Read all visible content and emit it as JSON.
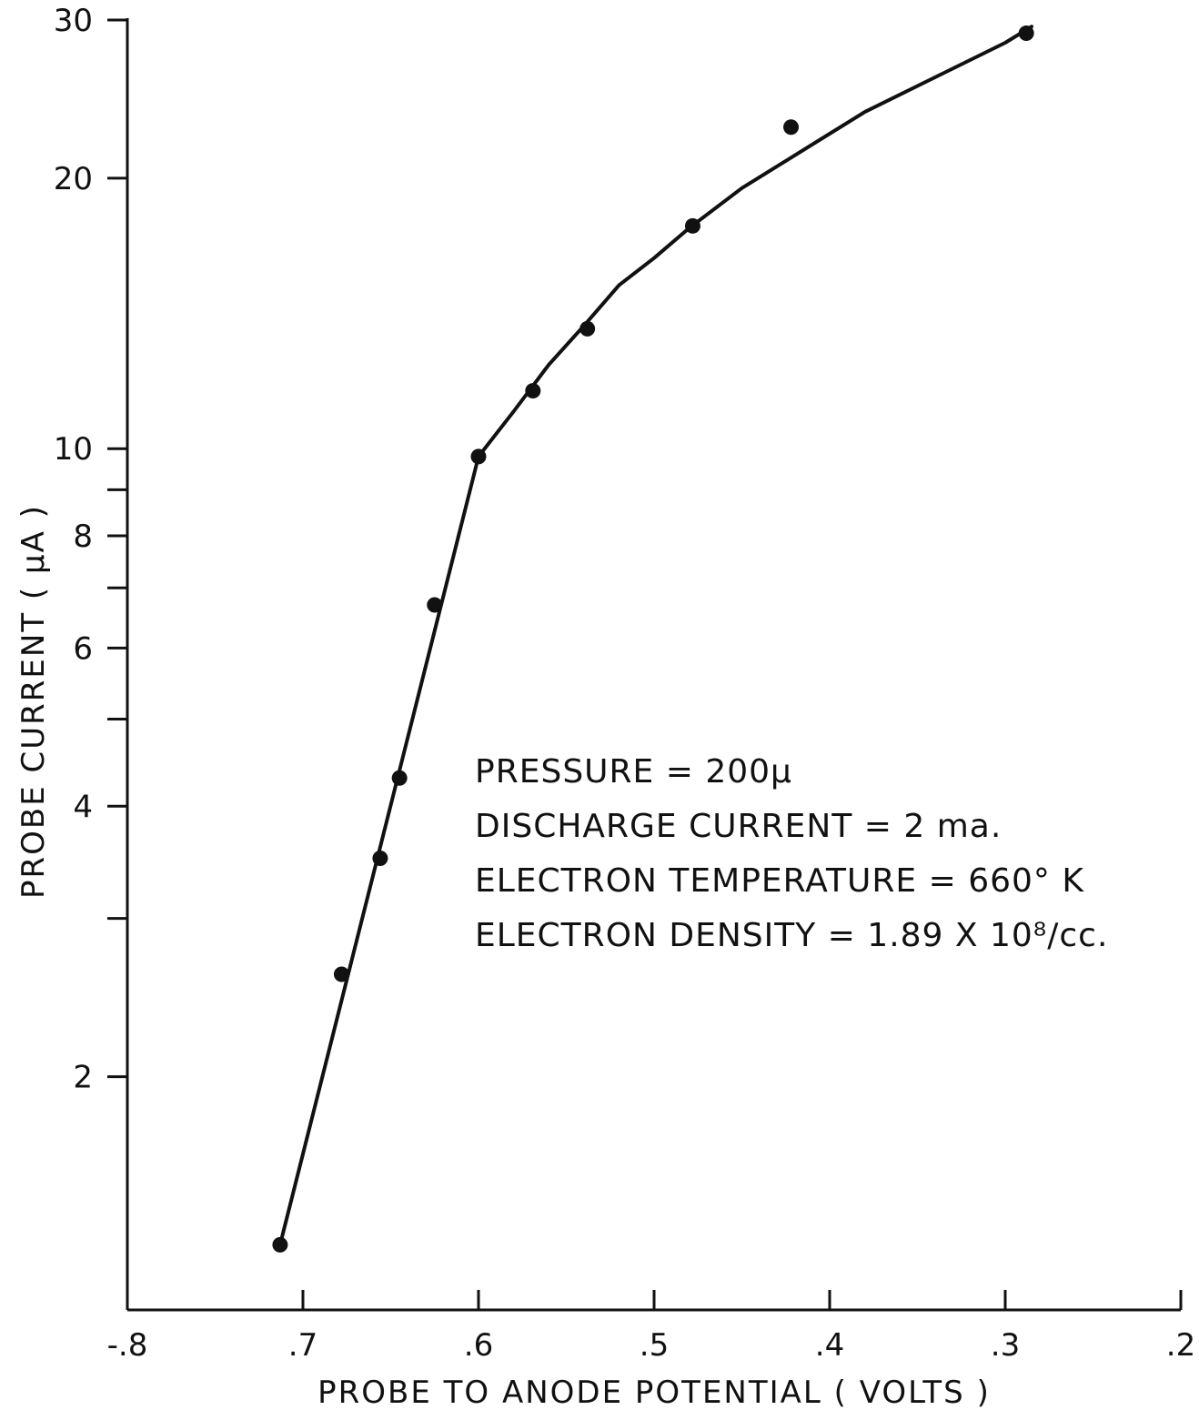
{
  "chart_data": {
    "type": "scatter",
    "xlabel": "PROBE TO ANODE POTENTIAL ( VOLTS )",
    "ylabel": "PROBE CURRENT ( μA )",
    "xlim": [
      -0.8,
      -0.2
    ],
    "x_reversed_magnitude_axis": true,
    "ylim": [
      1.1,
      30
    ],
    "yscale": "log",
    "grid": false,
    "x_ticks": [
      {
        "value": -0.8,
        "label": "-.8"
      },
      {
        "value": -0.7,
        "label": ".7"
      },
      {
        "value": -0.6,
        "label": ".6"
      },
      {
        "value": -0.5,
        "label": ".5"
      },
      {
        "value": -0.4,
        "label": ".4"
      },
      {
        "value": -0.3,
        "label": ".3"
      },
      {
        "value": -0.2,
        "label": ".2"
      }
    ],
    "y_ticks": [
      {
        "value": 2,
        "label": "2"
      },
      {
        "value": 3,
        "label": ""
      },
      {
        "value": 4,
        "label": "4"
      },
      {
        "value": 5,
        "label": ""
      },
      {
        "value": 6,
        "label": "6"
      },
      {
        "value": 7,
        "label": ""
      },
      {
        "value": 8,
        "label": "8"
      },
      {
        "value": 9,
        "label": ""
      },
      {
        "value": 10,
        "label": "10"
      },
      {
        "value": 20,
        "label": "20"
      },
      {
        "value": 30,
        "label": "30"
      }
    ],
    "points": {
      "x": [
        -0.713,
        -0.678,
        -0.656,
        -0.645,
        -0.625,
        -0.6,
        -0.569,
        -0.538,
        -0.478,
        -0.422,
        -0.288
      ],
      "y": [
        1.3,
        2.6,
        3.5,
        4.3,
        6.7,
        9.8,
        11.6,
        13.6,
        17.7,
        22.8,
        29.0
      ]
    },
    "fit_curve": {
      "x": [
        -0.713,
        -0.6,
        -0.58,
        -0.56,
        -0.54,
        -0.52,
        -0.5,
        -0.48,
        -0.45,
        -0.42,
        -0.38,
        -0.34,
        -0.3,
        -0.285
      ],
      "y": [
        1.3,
        9.8,
        11.0,
        12.4,
        13.7,
        15.2,
        16.3,
        17.6,
        19.5,
        21.2,
        23.7,
        25.9,
        28.3,
        29.5
      ]
    },
    "annotations": [
      "PRESSURE =  200μ",
      "DISCHARGE  CURRENT = 2 ma.",
      "ELECTRON  TEMPERATURE = 660° K",
      "ELECTRON  DENSITY = 1.89 X 10⁸/cc."
    ]
  }
}
